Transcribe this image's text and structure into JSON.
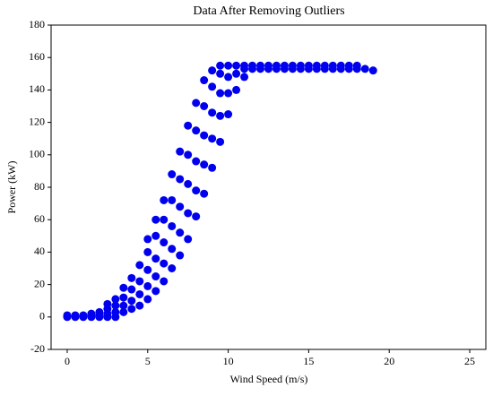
{
  "chart_data": {
    "type": "scatter",
    "title": "Data After Removing Outliers",
    "x_label": "Wind Speed (m/s)",
    "y_label": "Power (kW)",
    "color": "#0000ee",
    "grid": false,
    "xlim": [
      -1,
      26
    ],
    "ylim": [
      -20,
      180
    ],
    "xticks": [
      0,
      5,
      10,
      15,
      20,
      25
    ],
    "yticks": [
      -20,
      0,
      20,
      40,
      60,
      80,
      100,
      120,
      140,
      160,
      180
    ],
    "x": [
      0,
      0,
      0.5,
      0.5,
      1,
      1,
      1.5,
      1.5,
      1.5,
      2,
      2,
      2,
      2.5,
      2.5,
      2.5,
      2.5,
      3,
      3,
      3,
      3,
      3.5,
      3.5,
      3.5,
      3.5,
      4,
      4,
      4,
      4,
      4.5,
      4.5,
      4.5,
      4.5,
      5,
      5,
      5,
      5,
      5,
      5.5,
      5.5,
      5.5,
      5.5,
      5.5,
      6,
      6,
      6,
      6,
      6,
      6.5,
      6.5,
      6.5,
      6.5,
      6.5,
      7,
      7,
      7,
      7,
      7,
      7.5,
      7.5,
      7.5,
      7.5,
      7.5,
      8,
      8,
      8,
      8,
      8,
      8.5,
      8.5,
      8.5,
      8.5,
      8.5,
      9,
      9,
      9,
      9,
      9,
      9.5,
      9.5,
      9.5,
      9.5,
      9.5,
      10,
      10,
      10,
      10,
      10.5,
      10.5,
      10.5,
      11,
      11,
      11,
      11.5,
      11.5,
      12,
      12,
      12.5,
      12.5,
      13,
      13,
      13.5,
      13.5,
      14,
      14,
      14.5,
      14.5,
      15,
      15,
      15.5,
      15.5,
      16,
      16,
      16.5,
      16.5,
      17,
      17,
      17.5,
      17.5,
      18,
      18,
      18.5,
      19
    ],
    "y": [
      0,
      1,
      0,
      1,
      0,
      1,
      0,
      1,
      2,
      0,
      1,
      3,
      0,
      2,
      5,
      8,
      0,
      3,
      7,
      11,
      3,
      7,
      12,
      18,
      5,
      10,
      17,
      24,
      7,
      14,
      22,
      32,
      11,
      19,
      29,
      40,
      48,
      16,
      25,
      36,
      50,
      60,
      22,
      33,
      46,
      60,
      72,
      30,
      42,
      56,
      72,
      88,
      38,
      52,
      68,
      85,
      102,
      48,
      64,
      82,
      100,
      118,
      62,
      78,
      96,
      115,
      132,
      76,
      94,
      112,
      130,
      146,
      92,
      110,
      126,
      142,
      152,
      108,
      124,
      138,
      150,
      155,
      125,
      138,
      148,
      155,
      140,
      150,
      155,
      148,
      153,
      155,
      153,
      155,
      153,
      155,
      153,
      155,
      153,
      155,
      153,
      155,
      153,
      155,
      153,
      155,
      153,
      155,
      153,
      155,
      153,
      155,
      153,
      155,
      153,
      155,
      153,
      155,
      153,
      155,
      153,
      152
    ]
  }
}
